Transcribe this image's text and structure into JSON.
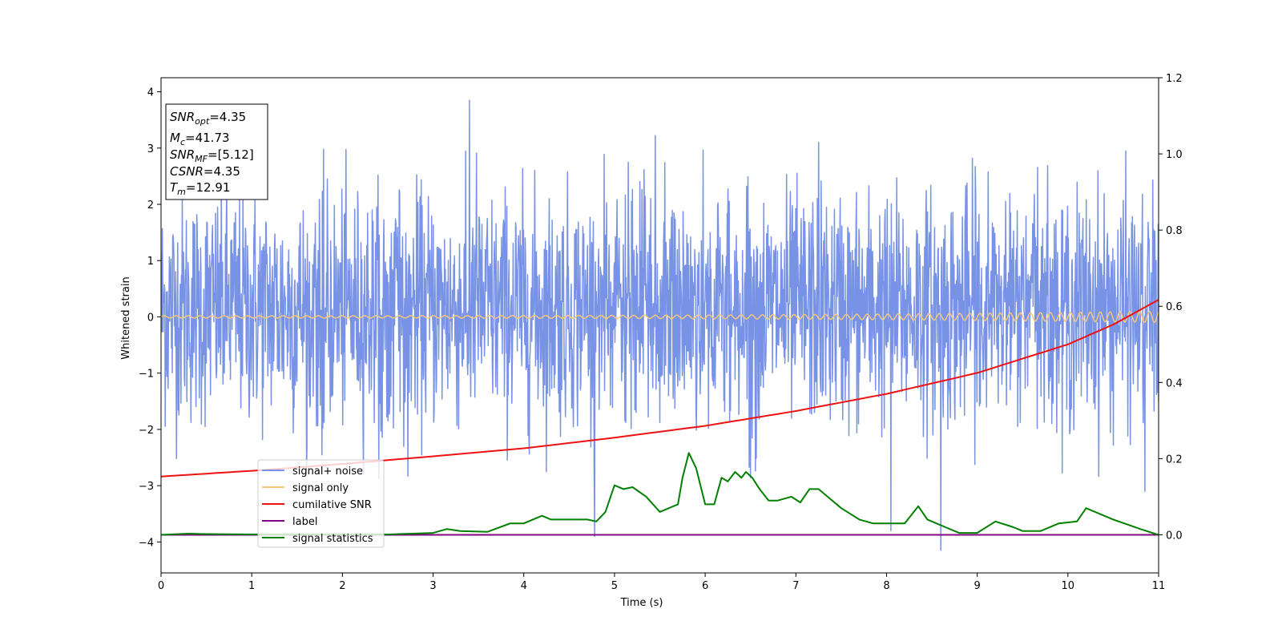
{
  "chart_data": {
    "type": "line",
    "xlabel": "Time (s)",
    "ylabel": "Whitened strain",
    "xlim": [
      0,
      11
    ],
    "ylim": [
      -4.55,
      4.25
    ],
    "y2lim": [
      -0.1,
      1.2
    ],
    "x_ticks": [
      "0",
      "1",
      "2",
      "3",
      "4",
      "5",
      "6",
      "7",
      "8",
      "9",
      "10",
      "11"
    ],
    "y_ticks": [
      "4",
      "3",
      "2",
      "1",
      "0",
      "−1",
      "−2",
      "−3",
      "−4"
    ],
    "y2_ticks": [
      "1.2",
      "1.0",
      "0.8",
      "0.6",
      "0.4",
      "0.2",
      "0.0"
    ],
    "grid": false,
    "legend_position": "lower-left",
    "colors": {
      "noise": "#7893e6",
      "signal": "#f5c77a",
      "csnr": "#ee1111",
      "label": "#800080",
      "stats": "#008000"
    },
    "series": [
      {
        "name": "signal+ noise",
        "axis": "left",
        "kind": "noise",
        "typical_range": [
          -1.7,
          2.0
        ],
        "extreme_points": [
          [
            3.4,
            3.85
          ],
          [
            5.45,
            3.22
          ],
          [
            7.25,
            3.1
          ],
          [
            4.78,
            -3.9
          ],
          [
            8.6,
            -4.15
          ],
          [
            8.05,
            -3.8
          ],
          [
            10.85,
            -3.1
          ]
        ]
      },
      {
        "name": "signal only",
        "axis": "left",
        "kind": "chirp",
        "amplitude_start": 0.02,
        "amplitude_end": 0.1
      },
      {
        "name": "cumilative SNR",
        "axis": "right",
        "x": [
          0,
          1,
          2,
          3,
          4,
          5,
          6,
          7,
          8,
          9,
          10,
          10.5,
          11
        ],
        "y": [
          0.153,
          0.168,
          0.186,
          0.206,
          0.227,
          0.255,
          0.286,
          0.325,
          0.37,
          0.425,
          0.5,
          0.552,
          0.617
        ]
      },
      {
        "name": "label",
        "axis": "right",
        "x": [
          0,
          11
        ],
        "y": [
          0.0,
          0.0
        ]
      },
      {
        "name": "signal statistics",
        "axis": "right",
        "x": [
          0,
          0.3,
          0.5,
          1.0,
          2.0,
          2.5,
          3.0,
          3.15,
          3.3,
          3.6,
          3.85,
          4.0,
          4.2,
          4.3,
          4.5,
          4.7,
          4.8,
          4.9,
          5.0,
          5.1,
          5.2,
          5.35,
          5.5,
          5.7,
          5.75,
          5.82,
          5.9,
          6.0,
          6.1,
          6.18,
          6.25,
          6.33,
          6.4,
          6.45,
          6.52,
          6.6,
          6.7,
          6.8,
          6.95,
          7.05,
          7.15,
          7.25,
          7.35,
          7.5,
          7.6,
          7.7,
          7.85,
          8.0,
          8.2,
          8.35,
          8.45,
          8.55,
          8.65,
          8.8,
          9.0,
          9.2,
          9.4,
          9.5,
          9.7,
          9.9,
          10.1,
          10.2,
          10.5,
          10.8,
          11.0
        ],
        "y": [
          0.0,
          0.003,
          0.002,
          0.001,
          0.001,
          0.001,
          0.005,
          0.015,
          0.01,
          0.008,
          0.03,
          0.03,
          0.05,
          0.04,
          0.04,
          0.04,
          0.035,
          0.06,
          0.13,
          0.12,
          0.125,
          0.1,
          0.06,
          0.08,
          0.15,
          0.215,
          0.175,
          0.08,
          0.08,
          0.15,
          0.14,
          0.165,
          0.15,
          0.165,
          0.15,
          0.12,
          0.09,
          0.09,
          0.1,
          0.085,
          0.12,
          0.12,
          0.1,
          0.07,
          0.055,
          0.04,
          0.03,
          0.03,
          0.03,
          0.075,
          0.04,
          0.03,
          0.02,
          0.005,
          0.005,
          0.035,
          0.02,
          0.01,
          0.01,
          0.03,
          0.035,
          0.07,
          0.04,
          0.015,
          0.0
        ]
      }
    ],
    "annotation": {
      "lines": [
        {
          "var": "SNR",
          "sub": "opt",
          "value": "=4.35"
        },
        {
          "var": "M",
          "sub": "c",
          "value": "=41.73"
        },
        {
          "var": "SNR",
          "sub": "MF",
          "value": "=[5.12]"
        },
        {
          "var": "CSNR",
          "sub": "",
          "value": "=4.35"
        },
        {
          "var": "T",
          "sub": "m",
          "value": "=12.91"
        }
      ]
    }
  }
}
